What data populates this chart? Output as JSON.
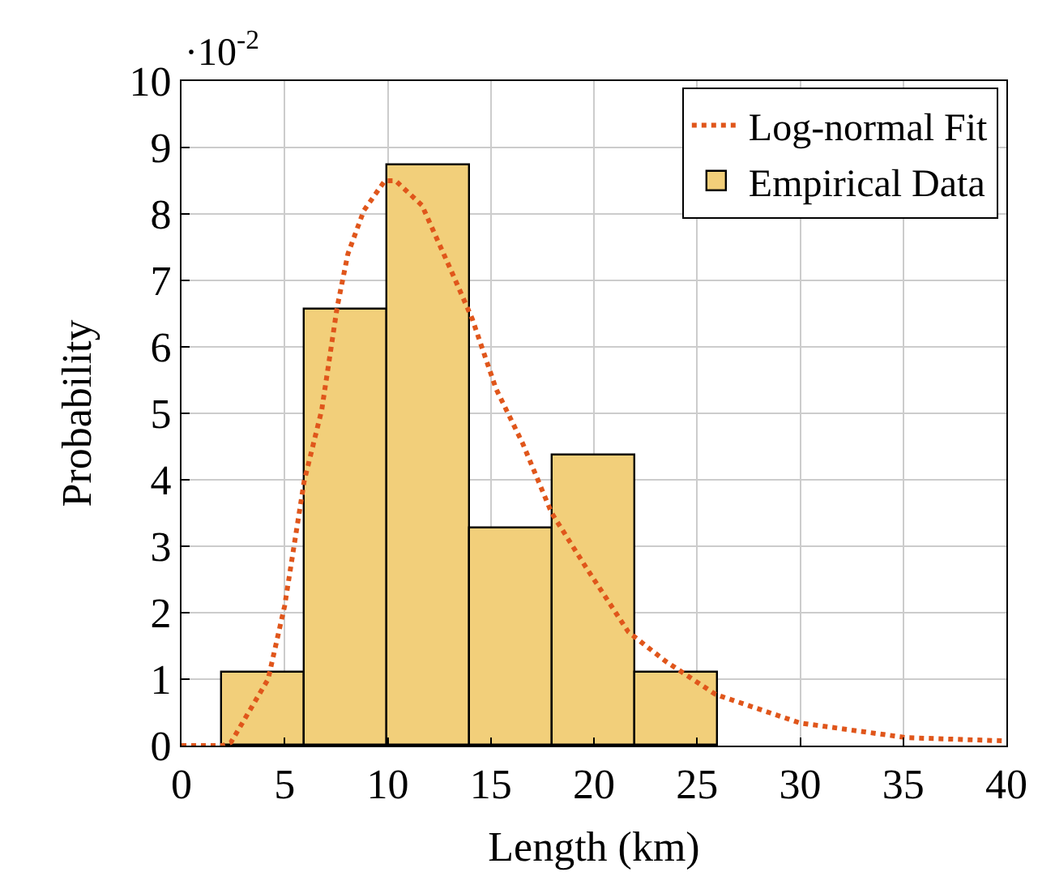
{
  "chart_data": {
    "type": "histogram",
    "xlabel": "Length (km)",
    "ylabel": "Probability",
    "annotations": [
      "·10$^{-2}$"
    ],
    "bins": [
      2,
      6,
      10,
      14,
      18,
      22,
      26
    ],
    "series": [
      {
        "name": "Log-normal Fit",
        "type": "line",
        "color": "#e0561b",
        "line_style": "dotted",
        "marker": "none",
        "x": [
          0,
          1,
          2,
          2.4,
          4.2,
          5.0,
          5.95,
          6.8,
          7.55,
          8.07,
          8.84,
          9.86,
          10.38,
          11.66,
          13.07,
          14.1,
          15.25,
          16.54,
          17.95,
          19.62,
          21.67,
          23.47,
          25.9,
          30.0,
          35.15,
          40
        ],
        "values": [
          0,
          0,
          0,
          0.05,
          1.0,
          2.1,
          3.98,
          5.05,
          6.6,
          7.4,
          8.05,
          8.5,
          8.5,
          8.13,
          7.15,
          6.42,
          5.37,
          4.55,
          3.5,
          2.68,
          1.71,
          1.27,
          0.77,
          0.34,
          0.12,
          0.07
        ]
      },
      {
        "name": "Empirical Data",
        "color": "#f2cf7a",
        "values": [
          1.1,
          6.55,
          8.72,
          3.27,
          4.37,
          1.1
        ]
      }
    ],
    "xlim": [
      0,
      40
    ],
    "xticks": [
      0,
      5,
      10,
      15,
      20,
      25,
      30,
      35,
      40
    ],
    "ylim": [
      0,
      10
    ],
    "yticks": [
      0,
      1,
      2,
      3,
      4,
      5,
      6,
      7,
      8,
      9,
      10
    ],
    "grid": true,
    "legend": "top right"
  }
}
